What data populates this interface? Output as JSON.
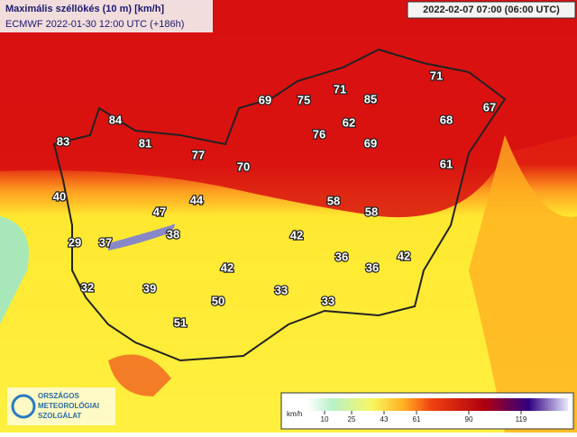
{
  "title": "Maximális széllökés (10 m) [km/h]",
  "model_run": "ECMWF 2022-01-30 12:00 UTC (+186h)",
  "valid_time": "2022-02-07 07:00 (06:00 UTC)",
  "station_values": [
    83,
    84,
    81,
    77,
    70,
    69,
    75,
    71,
    85,
    62,
    76,
    69,
    71,
    68,
    67,
    61,
    40,
    44,
    47,
    58,
    58,
    29,
    37,
    38,
    42,
    42,
    36,
    36,
    42,
    32,
    39,
    33,
    50,
    33,
    51
  ],
  "legend": {
    "unit": "km/h",
    "ticks": [
      10,
      25,
      43,
      61,
      90,
      119
    ]
  },
  "logo": {
    "lines": [
      "ORSZÁGOS",
      "METEOROLÓGIAI",
      "SZOLGÁLAT"
    ]
  }
}
